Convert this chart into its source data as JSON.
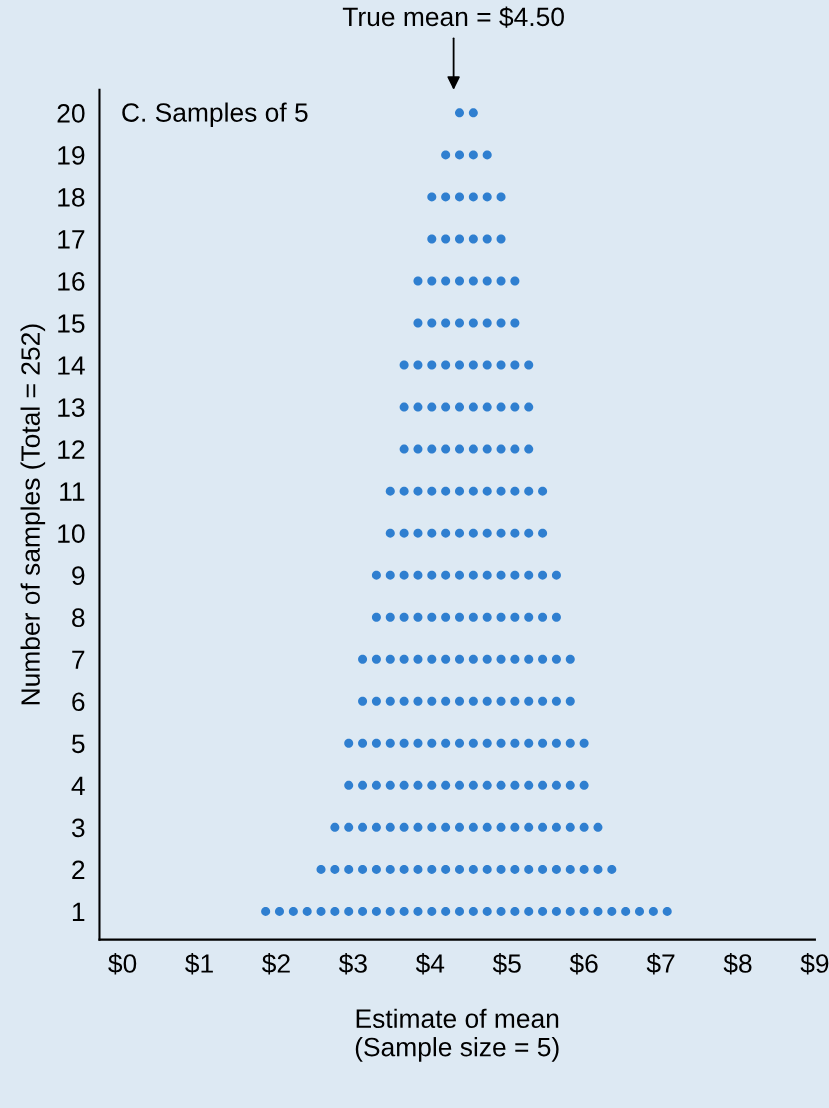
{
  "chart_data": {
    "type": "scatter",
    "title": "C. Samples of 5",
    "xlabel": "Estimate of mean\n(Sample size = 5)",
    "ylabel": "Number of samples (Total = 252)",
    "annotations": [
      "True mean = $4.50"
    ],
    "color": "#2f7fd0",
    "marker": "circle",
    "grid": false,
    "xlim": [
      -0.3,
      9
    ],
    "xticks": [
      {
        "value": 0,
        "label": "$0"
      },
      {
        "value": 1,
        "label": "$1"
      },
      {
        "value": 2,
        "label": "$2"
      },
      {
        "value": 3,
        "label": "$3"
      },
      {
        "value": 4,
        "label": "$4"
      },
      {
        "value": 5,
        "label": "$5"
      },
      {
        "value": 6,
        "label": "$6"
      },
      {
        "value": 7,
        "label": "$7"
      },
      {
        "value": 8,
        "label": "$8"
      },
      {
        "value": 9,
        "label": "$9"
      }
    ],
    "ylim": [
      0.33,
      20.55
    ],
    "yticks": [
      1,
      2,
      3,
      4,
      5,
      6,
      7,
      8,
      9,
      10,
      11,
      12,
      13,
      14,
      15,
      16,
      17,
      18,
      19,
      20
    ],
    "x": [
      1.86,
      2.04,
      2.22,
      2.4,
      2.58,
      2.76,
      2.94,
      3.12,
      3.3,
      3.48,
      3.66,
      3.84,
      4.02,
      4.2,
      4.38,
      4.56,
      4.74,
      4.92,
      5.1,
      5.28,
      5.46,
      5.64,
      5.82,
      6.0,
      6.18,
      6.36,
      6.54,
      6.72,
      6.9,
      7.08,
      2.58,
      2.76,
      2.94,
      3.12,
      3.3,
      3.48,
      3.66,
      3.84,
      4.02,
      4.2,
      4.38,
      4.56,
      4.74,
      4.92,
      5.1,
      5.28,
      5.46,
      5.64,
      5.82,
      6.0,
      6.18,
      6.36,
      2.76,
      2.94,
      3.12,
      3.3,
      3.48,
      3.66,
      3.84,
      4.02,
      4.2,
      4.38,
      4.56,
      4.74,
      4.92,
      5.1,
      5.28,
      5.46,
      5.64,
      5.82,
      6.0,
      6.18,
      2.94,
      3.12,
      3.3,
      3.48,
      3.66,
      3.84,
      4.02,
      4.2,
      4.38,
      4.56,
      4.74,
      4.92,
      5.1,
      5.28,
      5.46,
      5.64,
      5.82,
      6.0,
      2.94,
      3.12,
      3.3,
      3.48,
      3.66,
      3.84,
      4.02,
      4.2,
      4.38,
      4.56,
      4.74,
      4.92,
      5.1,
      5.28,
      5.46,
      5.64,
      5.82,
      6.0,
      3.12,
      3.3,
      3.48,
      3.66,
      3.84,
      4.02,
      4.2,
      4.38,
      4.56,
      4.74,
      4.92,
      5.1,
      5.28,
      5.46,
      5.64,
      5.82,
      3.12,
      3.3,
      3.48,
      3.66,
      3.84,
      4.02,
      4.2,
      4.38,
      4.56,
      4.74,
      4.92,
      5.1,
      5.28,
      5.46,
      5.64,
      5.82,
      3.3,
      3.48,
      3.66,
      3.84,
      4.02,
      4.2,
      4.38,
      4.56,
      4.74,
      4.92,
      5.1,
      5.28,
      5.46,
      5.64,
      3.3,
      3.48,
      3.66,
      3.84,
      4.02,
      4.2,
      4.38,
      4.56,
      4.74,
      4.92,
      5.1,
      5.28,
      5.46,
      5.64,
      3.48,
      3.66,
      3.84,
      4.02,
      4.2,
      4.38,
      4.56,
      4.74,
      4.92,
      5.1,
      5.28,
      5.46,
      3.48,
      3.66,
      3.84,
      4.02,
      4.2,
      4.38,
      4.56,
      4.74,
      4.92,
      5.1,
      5.28,
      5.46,
      3.66,
      3.84,
      4.02,
      4.2,
      4.38,
      4.56,
      4.74,
      4.92,
      5.1,
      5.28,
      3.66,
      3.84,
      4.02,
      4.2,
      4.38,
      4.56,
      4.74,
      4.92,
      5.1,
      5.28,
      3.66,
      3.84,
      4.02,
      4.2,
      4.38,
      4.56,
      4.74,
      4.92,
      5.1,
      5.28,
      3.84,
      4.02,
      4.2,
      4.38,
      4.56,
      4.74,
      4.92,
      5.1,
      3.84,
      4.02,
      4.2,
      4.38,
      4.56,
      4.74,
      4.92,
      5.1,
      4.02,
      4.2,
      4.38,
      4.56,
      4.74,
      4.92,
      4.02,
      4.2,
      4.38,
      4.56,
      4.74,
      4.92,
      4.2,
      4.38,
      4.56,
      4.74,
      4.38,
      4.56
    ],
    "values": [
      1,
      1,
      1,
      1,
      1,
      1,
      1,
      1,
      1,
      1,
      1,
      1,
      1,
      1,
      1,
      1,
      1,
      1,
      1,
      1,
      1,
      1,
      1,
      1,
      1,
      1,
      1,
      1,
      1,
      1,
      2,
      2,
      2,
      2,
      2,
      2,
      2,
      2,
      2,
      2,
      2,
      2,
      2,
      2,
      2,
      2,
      2,
      2,
      2,
      2,
      2,
      2,
      3,
      3,
      3,
      3,
      3,
      3,
      3,
      3,
      3,
      3,
      3,
      3,
      3,
      3,
      3,
      3,
      3,
      3,
      3,
      3,
      4,
      4,
      4,
      4,
      4,
      4,
      4,
      4,
      4,
      4,
      4,
      4,
      4,
      4,
      4,
      4,
      4,
      4,
      5,
      5,
      5,
      5,
      5,
      5,
      5,
      5,
      5,
      5,
      5,
      5,
      5,
      5,
      5,
      5,
      5,
      5,
      6,
      6,
      6,
      6,
      6,
      6,
      6,
      6,
      6,
      6,
      6,
      6,
      6,
      6,
      6,
      6,
      7,
      7,
      7,
      7,
      7,
      7,
      7,
      7,
      7,
      7,
      7,
      7,
      7,
      7,
      7,
      7,
      8,
      8,
      8,
      8,
      8,
      8,
      8,
      8,
      8,
      8,
      8,
      8,
      8,
      8,
      9,
      9,
      9,
      9,
      9,
      9,
      9,
      9,
      9,
      9,
      9,
      9,
      9,
      9,
      10,
      10,
      10,
      10,
      10,
      10,
      10,
      10,
      10,
      10,
      10,
      10,
      11,
      11,
      11,
      11,
      11,
      11,
      11,
      11,
      11,
      11,
      11,
      11,
      12,
      12,
      12,
      12,
      12,
      12,
      12,
      12,
      12,
      12,
      13,
      13,
      13,
      13,
      13,
      13,
      13,
      13,
      13,
      13,
      14,
      14,
      14,
      14,
      14,
      14,
      14,
      14,
      14,
      14,
      15,
      15,
      15,
      15,
      15,
      15,
      15,
      15,
      16,
      16,
      16,
      16,
      16,
      16,
      16,
      16,
      17,
      17,
      17,
      17,
      17,
      17,
      18,
      18,
      18,
      18,
      18,
      18,
      19,
      19,
      19,
      19,
      20,
      20
    ]
  }
}
